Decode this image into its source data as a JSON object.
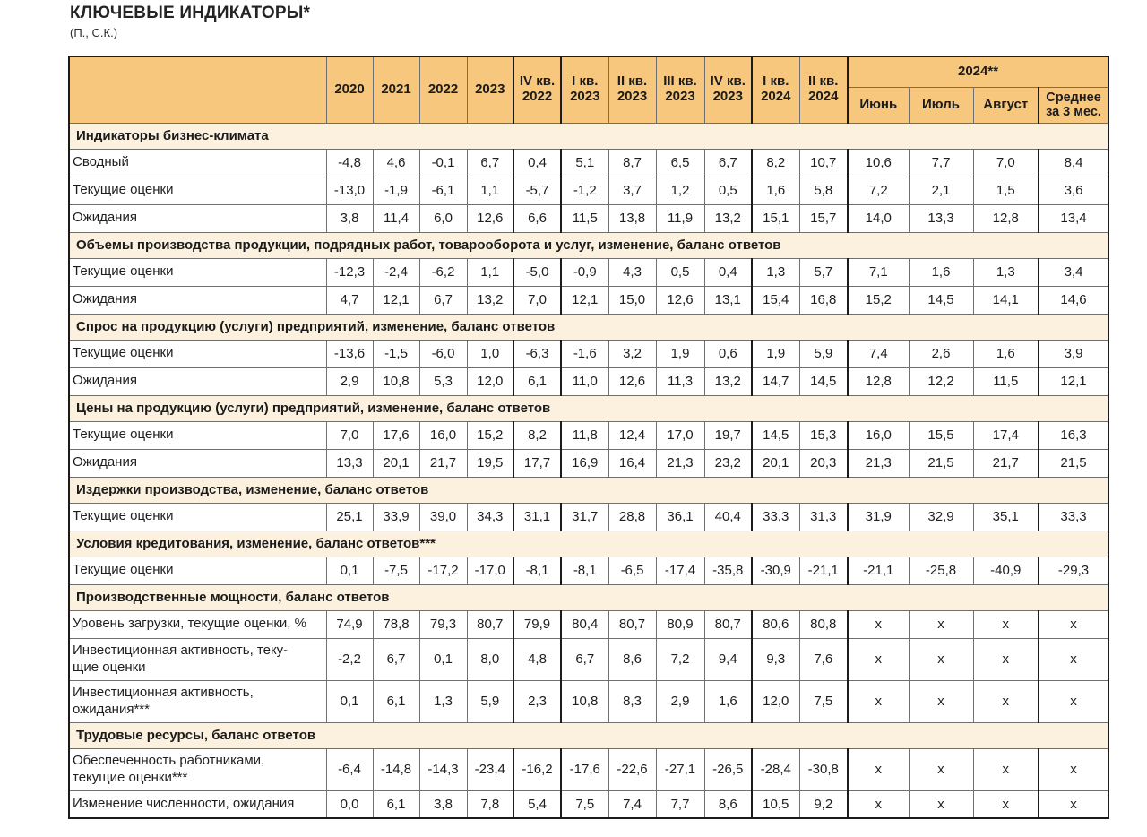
{
  "page": {
    "title": "КЛЮЧЕВЫЕ ИНДИКАТОРЫ*",
    "subtitle": "(П., С.К.)"
  },
  "colors": {
    "header_bg": "#F7C77E",
    "section_bg": "#FBF1DE",
    "border_thin": "#6f6f6f",
    "border_thick": "#1b1b1b"
  },
  "table": {
    "header": {
      "single_columns": [
        "2020",
        "2021",
        "2022",
        "2023",
        "IV кв.\n2022",
        "I кв.\n2023",
        "II кв.\n2023",
        "III кв.\n2023",
        "IV кв.\n2023",
        "I кв.\n2024",
        "II кв.\n2024"
      ],
      "group": {
        "label": "2024**",
        "columns": [
          "Июнь",
          "Июль",
          "Август",
          "Среднее\nза 3 мес."
        ]
      }
    },
    "sections": [
      {
        "title": "Индикаторы бизнес-климата",
        "rows": [
          {
            "label": "Сводный",
            "values": [
              "-4,8",
              "4,6",
              "-0,1",
              "6,7",
              "0,4",
              "5,1",
              "8,7",
              "6,5",
              "6,7",
              "8,2",
              "10,7",
              "10,6",
              "7,7",
              "7,0",
              "8,4"
            ]
          },
          {
            "label": "Текущие оценки",
            "values": [
              "-13,0",
              "-1,9",
              "-6,1",
              "1,1",
              "-5,7",
              "-1,2",
              "3,7",
              "1,2",
              "0,5",
              "1,6",
              "5,8",
              "7,2",
              "2,1",
              "1,5",
              "3,6"
            ]
          },
          {
            "label": "Ожидания",
            "values": [
              "3,8",
              "11,4",
              "6,0",
              "12,6",
              "6,6",
              "11,5",
              "13,8",
              "11,9",
              "13,2",
              "15,1",
              "15,7",
              "14,0",
              "13,3",
              "12,8",
              "13,4"
            ]
          }
        ]
      },
      {
        "title": "Объемы производства продукции, подрядных работ, товарооборота и услуг, изменение, баланс ответов",
        "rows": [
          {
            "label": "Текущие оценки",
            "values": [
              "-12,3",
              "-2,4",
              "-6,2",
              "1,1",
              "-5,0",
              "-0,9",
              "4,3",
              "0,5",
              "0,4",
              "1,3",
              "5,7",
              "7,1",
              "1,6",
              "1,3",
              "3,4"
            ]
          },
          {
            "label": "Ожидания",
            "values": [
              "4,7",
              "12,1",
              "6,7",
              "13,2",
              "7,0",
              "12,1",
              "15,0",
              "12,6",
              "13,1",
              "15,4",
              "16,8",
              "15,2",
              "14,5",
              "14,1",
              "14,6"
            ]
          }
        ]
      },
      {
        "title": "Спрос на продукцию (услуги) предприятий, изменение, баланс ответов",
        "rows": [
          {
            "label": "Текущие оценки",
            "values": [
              "-13,6",
              "-1,5",
              "-6,0",
              "1,0",
              "-6,3",
              "-1,6",
              "3,2",
              "1,9",
              "0,6",
              "1,9",
              "5,9",
              "7,4",
              "2,6",
              "1,6",
              "3,9"
            ]
          },
          {
            "label": "Ожидания",
            "values": [
              "2,9",
              "10,8",
              "5,3",
              "12,0",
              "6,1",
              "11,0",
              "12,6",
              "11,3",
              "13,2",
              "14,7",
              "14,5",
              "12,8",
              "12,2",
              "11,5",
              "12,1"
            ]
          }
        ]
      },
      {
        "title": "Цены на продукцию (услуги) предприятий, изменение, баланс ответов",
        "rows": [
          {
            "label": "Текущие оценки",
            "values": [
              "7,0",
              "17,6",
              "16,0",
              "15,2",
              "8,2",
              "11,8",
              "12,4",
              "17,0",
              "19,7",
              "14,5",
              "15,3",
              "16,0",
              "15,5",
              "17,4",
              "16,3"
            ]
          },
          {
            "label": "Ожидания",
            "values": [
              "13,3",
              "20,1",
              "21,7",
              "19,5",
              "17,7",
              "16,9",
              "16,4",
              "21,3",
              "23,2",
              "20,1",
              "20,3",
              "21,3",
              "21,5",
              "21,7",
              "21,5"
            ]
          }
        ]
      },
      {
        "title": "Издержки производства, изменение, баланс ответов",
        "rows": [
          {
            "label": "Текущие оценки",
            "values": [
              "25,1",
              "33,9",
              "39,0",
              "34,3",
              "31,1",
              "31,7",
              "28,8",
              "36,1",
              "40,4",
              "33,3",
              "31,3",
              "31,9",
              "32,9",
              "35,1",
              "33,3"
            ]
          }
        ]
      },
      {
        "title": "Условия кредитования, изменение, баланс ответов***",
        "rows": [
          {
            "label": "Текущие оценки",
            "values": [
              "0,1",
              "-7,5",
              "-17,2",
              "-17,0",
              "-8,1",
              "-8,1",
              "-6,5",
              "-17,4",
              "-35,8",
              "-30,9",
              "-21,1",
              "-21,1",
              "-25,8",
              "-40,9",
              "-29,3"
            ]
          }
        ]
      },
      {
        "title": "Производственные мощности, баланс ответов",
        "rows": [
          {
            "label": "Уровень загрузки, текущие оценки, %",
            "values": [
              "74,9",
              "78,8",
              "79,3",
              "80,7",
              "79,9",
              "80,4",
              "80,7",
              "80,9",
              "80,7",
              "80,6",
              "80,8",
              "x",
              "x",
              "x",
              "x"
            ]
          },
          {
            "label": "Инвестиционная активность, теку-\nщие оценки",
            "values": [
              "-2,2",
              "6,7",
              "0,1",
              "8,0",
              "4,8",
              "6,7",
              "8,6",
              "7,2",
              "9,4",
              "9,3",
              "7,6",
              "x",
              "x",
              "x",
              "x"
            ]
          },
          {
            "label": "Инвестиционная активность,\nожидания***",
            "values": [
              "0,1",
              "6,1",
              "1,3",
              "5,9",
              "2,3",
              "10,8",
              "8,3",
              "2,9",
              "1,6",
              "12,0",
              "7,5",
              "x",
              "x",
              "x",
              "x"
            ]
          }
        ]
      },
      {
        "title": "Трудовые ресурсы, баланс ответов",
        "rows": [
          {
            "label": "Обеспеченность работниками,\nтекущие оценки***",
            "values": [
              "-6,4",
              "-14,8",
              "-14,3",
              "-23,4",
              "-16,2",
              "-17,6",
              "-22,6",
              "-27,1",
              "-26,5",
              "-28,4",
              "-30,8",
              "x",
              "x",
              "x",
              "x"
            ]
          },
          {
            "label": "Изменение численности, ожидания",
            "values": [
              "0,0",
              "6,1",
              "3,8",
              "7,8",
              "5,4",
              "7,5",
              "7,4",
              "7,7",
              "8,6",
              "10,5",
              "9,2",
              "x",
              "x",
              "x",
              "x"
            ]
          }
        ]
      }
    ]
  }
}
